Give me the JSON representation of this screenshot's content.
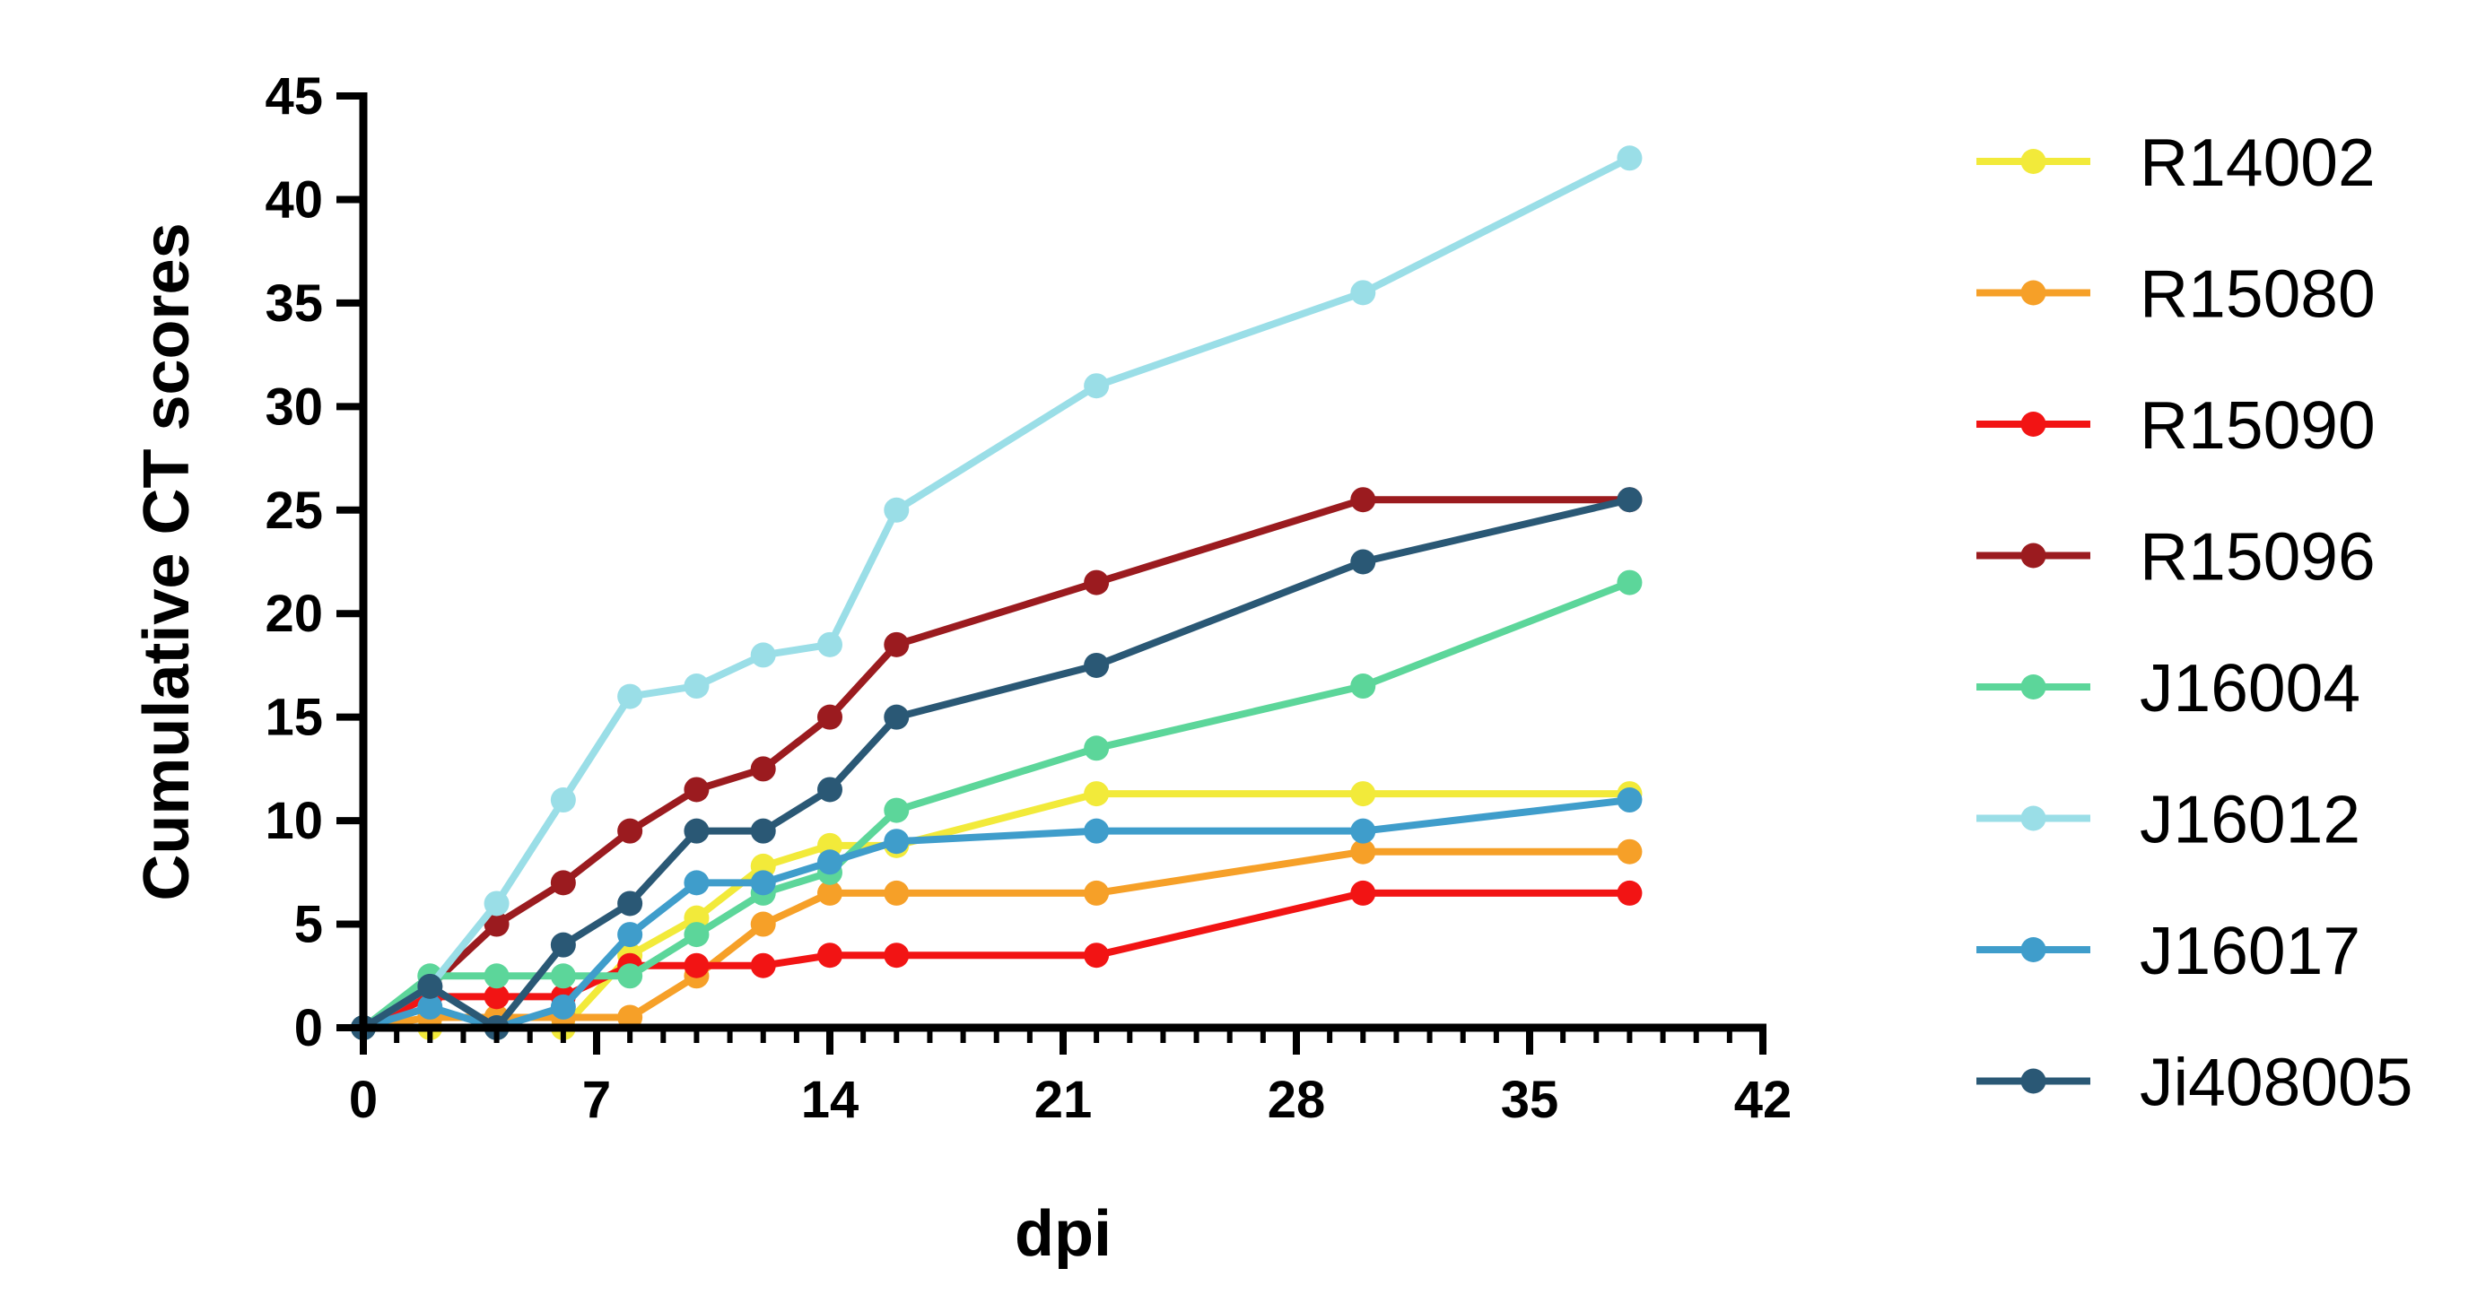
{
  "chart_data": {
    "type": "line",
    "xlabel": "dpi",
    "ylabel": "Cumulative CT scores",
    "xlim": [
      0,
      42
    ],
    "ylim": [
      0,
      45
    ],
    "xticks": [
      0,
      7,
      14,
      21,
      28,
      35,
      42
    ],
    "yticks": [
      0,
      5,
      10,
      15,
      20,
      25,
      30,
      35,
      40,
      45
    ],
    "x_minor_step": 1,
    "grid": false,
    "legend_position": "right",
    "x": [
      0,
      2,
      4,
      6,
      8,
      10,
      12,
      14,
      16,
      22,
      30,
      38
    ],
    "series": [
      {
        "name": "R14002",
        "color": "#F2EA3A",
        "values": [
          0,
          0,
          0,
          0,
          3.5,
          5.3,
          7.8,
          8.8,
          8.8,
          11.3,
          11.3,
          11.3
        ]
      },
      {
        "name": "R15080",
        "color": "#F6A028",
        "values": [
          0,
          0.5,
          0.5,
          0.5,
          0.5,
          2.5,
          5,
          6.5,
          6.5,
          6.5,
          8.5,
          8.5
        ]
      },
      {
        "name": "R15090",
        "color": "#F21414",
        "values": [
          0,
          1.5,
          1.5,
          1.5,
          3,
          3,
          3,
          3.5,
          3.5,
          3.5,
          6.5,
          6.5
        ]
      },
      {
        "name": "R15096",
        "color": "#9B1B1F",
        "values": [
          0,
          2,
          5,
          7,
          9.5,
          11.5,
          12.5,
          15,
          18.5,
          21.5,
          25.5,
          25.5
        ]
      },
      {
        "name": "J16004",
        "color": "#5CD69A",
        "values": [
          0,
          2.5,
          2.5,
          2.5,
          2.5,
          4.5,
          6.5,
          7.5,
          10.5,
          13.5,
          16.5,
          21.5
        ]
      },
      {
        "name": "J16012",
        "color": "#9ADEE7",
        "values": [
          0,
          2,
          6,
          11,
          16,
          16.5,
          18,
          18.5,
          25,
          31,
          35.5,
          42
        ]
      },
      {
        "name": "J16017",
        "color": "#3F9DCB",
        "values": [
          0,
          1,
          0,
          1,
          4.5,
          7,
          7,
          8,
          9,
          9.5,
          9.5,
          11
        ]
      },
      {
        "name": "Ji408005",
        "color": "#2A5875",
        "values": [
          0,
          2,
          0,
          4,
          6,
          9.5,
          9.5,
          11.5,
          15,
          17.5,
          22.5,
          25.5
        ]
      }
    ]
  }
}
